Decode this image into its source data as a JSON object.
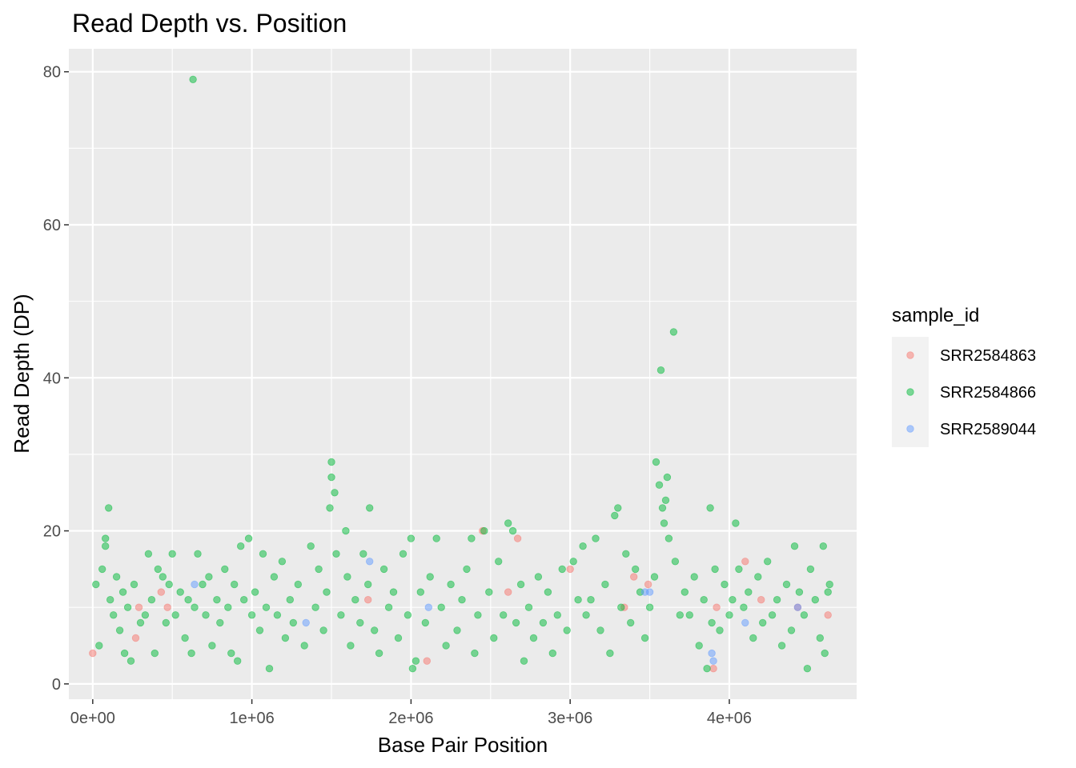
{
  "chart_data": {
    "type": "scatter",
    "title": "Read Depth vs. Position",
    "xlabel": "Base Pair Position",
    "ylabel": "Read Depth (DP)",
    "xlim": [
      -150000,
      4800000
    ],
    "ylim": [
      -2,
      83
    ],
    "x_ticks": [
      {
        "value": 0,
        "label": "0e+00"
      },
      {
        "value": 1000000,
        "label": "1e+06"
      },
      {
        "value": 2000000,
        "label": "2e+06"
      },
      {
        "value": 3000000,
        "label": "3e+06"
      },
      {
        "value": 4000000,
        "label": "4e+06"
      }
    ],
    "y_ticks": [
      {
        "value": 0,
        "label": "0"
      },
      {
        "value": 20,
        "label": "20"
      },
      {
        "value": 40,
        "label": "40"
      },
      {
        "value": 60,
        "label": "60"
      },
      {
        "value": 80,
        "label": "80"
      }
    ],
    "grid": true,
    "legend": {
      "title": "sample_id",
      "position": "right"
    },
    "series": [
      {
        "name": "SRR2584863",
        "color": "#F8766D",
        "points": [
          [
            0,
            4
          ],
          [
            270000,
            6
          ],
          [
            290000,
            10
          ],
          [
            430000,
            12
          ],
          [
            470000,
            10
          ],
          [
            1730000,
            11
          ],
          [
            2100000,
            3
          ],
          [
            2450000,
            20
          ],
          [
            2610000,
            12
          ],
          [
            2670000,
            19
          ],
          [
            3000000,
            15
          ],
          [
            3340000,
            10
          ],
          [
            3400000,
            14
          ],
          [
            3490000,
            13
          ],
          [
            3900000,
            2
          ],
          [
            3920000,
            10
          ],
          [
            4100000,
            16
          ],
          [
            4200000,
            11
          ],
          [
            4430000,
            10
          ],
          [
            4620000,
            9
          ]
        ]
      },
      {
        "name": "SRR2584866",
        "color": "#00BA38",
        "points": [
          [
            20000,
            13
          ],
          [
            40000,
            5
          ],
          [
            60000,
            15
          ],
          [
            80000,
            19
          ],
          [
            80000,
            18
          ],
          [
            100000,
            23
          ],
          [
            110000,
            11
          ],
          [
            130000,
            9
          ],
          [
            150000,
            14
          ],
          [
            170000,
            7
          ],
          [
            190000,
            12
          ],
          [
            200000,
            4
          ],
          [
            220000,
            10
          ],
          [
            240000,
            3
          ],
          [
            260000,
            13
          ],
          [
            300000,
            8
          ],
          [
            330000,
            9
          ],
          [
            350000,
            17
          ],
          [
            370000,
            11
          ],
          [
            390000,
            4
          ],
          [
            410000,
            15
          ],
          [
            440000,
            14
          ],
          [
            460000,
            8
          ],
          [
            480000,
            13
          ],
          [
            500000,
            17
          ],
          [
            520000,
            9
          ],
          [
            550000,
            12
          ],
          [
            580000,
            6
          ],
          [
            600000,
            11
          ],
          [
            620000,
            4
          ],
          [
            630000,
            79
          ],
          [
            640000,
            10
          ],
          [
            660000,
            17
          ],
          [
            690000,
            13
          ],
          [
            710000,
            9
          ],
          [
            730000,
            14
          ],
          [
            750000,
            5
          ],
          [
            780000,
            11
          ],
          [
            800000,
            8
          ],
          [
            830000,
            15
          ],
          [
            850000,
            10
          ],
          [
            870000,
            4
          ],
          [
            890000,
            13
          ],
          [
            910000,
            3
          ],
          [
            930000,
            18
          ],
          [
            950000,
            11
          ],
          [
            980000,
            19
          ],
          [
            1000000,
            9
          ],
          [
            1020000,
            12
          ],
          [
            1050000,
            7
          ],
          [
            1070000,
            17
          ],
          [
            1090000,
            10
          ],
          [
            1110000,
            2
          ],
          [
            1140000,
            14
          ],
          [
            1160000,
            9
          ],
          [
            1190000,
            16
          ],
          [
            1210000,
            6
          ],
          [
            1240000,
            11
          ],
          [
            1260000,
            8
          ],
          [
            1290000,
            13
          ],
          [
            1330000,
            5
          ],
          [
            1370000,
            18
          ],
          [
            1400000,
            10
          ],
          [
            1420000,
            15
          ],
          [
            1450000,
            7
          ],
          [
            1470000,
            12
          ],
          [
            1490000,
            23
          ],
          [
            1500000,
            29
          ],
          [
            1500000,
            27
          ],
          [
            1520000,
            25
          ],
          [
            1530000,
            17
          ],
          [
            1560000,
            9
          ],
          [
            1590000,
            20
          ],
          [
            1600000,
            14
          ],
          [
            1620000,
            5
          ],
          [
            1650000,
            11
          ],
          [
            1680000,
            8
          ],
          [
            1700000,
            17
          ],
          [
            1730000,
            13
          ],
          [
            1740000,
            23
          ],
          [
            1770000,
            7
          ],
          [
            1800000,
            4
          ],
          [
            1830000,
            15
          ],
          [
            1860000,
            10
          ],
          [
            1890000,
            12
          ],
          [
            1920000,
            6
          ],
          [
            1950000,
            17
          ],
          [
            1980000,
            9
          ],
          [
            2000000,
            19
          ],
          [
            2010000,
            2
          ],
          [
            2030000,
            3
          ],
          [
            2060000,
            12
          ],
          [
            2090000,
            8
          ],
          [
            2120000,
            14
          ],
          [
            2160000,
            19
          ],
          [
            2190000,
            10
          ],
          [
            2220000,
            5
          ],
          [
            2250000,
            13
          ],
          [
            2290000,
            7
          ],
          [
            2320000,
            11
          ],
          [
            2350000,
            15
          ],
          [
            2380000,
            19
          ],
          [
            2400000,
            4
          ],
          [
            2420000,
            9
          ],
          [
            2460000,
            20
          ],
          [
            2490000,
            12
          ],
          [
            2520000,
            6
          ],
          [
            2550000,
            16
          ],
          [
            2580000,
            9
          ],
          [
            2610000,
            21
          ],
          [
            2640000,
            20
          ],
          [
            2660000,
            8
          ],
          [
            2690000,
            13
          ],
          [
            2710000,
            3
          ],
          [
            2740000,
            10
          ],
          [
            2770000,
            6
          ],
          [
            2800000,
            14
          ],
          [
            2830000,
            8
          ],
          [
            2860000,
            12
          ],
          [
            2890000,
            4
          ],
          [
            2920000,
            9
          ],
          [
            2950000,
            15
          ],
          [
            2980000,
            7
          ],
          [
            3020000,
            16
          ],
          [
            3050000,
            11
          ],
          [
            3080000,
            18
          ],
          [
            3100000,
            9
          ],
          [
            3130000,
            11
          ],
          [
            3160000,
            19
          ],
          [
            3190000,
            7
          ],
          [
            3220000,
            13
          ],
          [
            3250000,
            4
          ],
          [
            3280000,
            22
          ],
          [
            3300000,
            23
          ],
          [
            3320000,
            10
          ],
          [
            3350000,
            17
          ],
          [
            3380000,
            8
          ],
          [
            3410000,
            15
          ],
          [
            3440000,
            12
          ],
          [
            3470000,
            6
          ],
          [
            3500000,
            10
          ],
          [
            3530000,
            14
          ],
          [
            3540000,
            29
          ],
          [
            3560000,
            26
          ],
          [
            3570000,
            41
          ],
          [
            3580000,
            23
          ],
          [
            3590000,
            21
          ],
          [
            3600000,
            24
          ],
          [
            3610000,
            27
          ],
          [
            3620000,
            19
          ],
          [
            3650000,
            46
          ],
          [
            3660000,
            16
          ],
          [
            3690000,
            9
          ],
          [
            3720000,
            12
          ],
          [
            3750000,
            9
          ],
          [
            3780000,
            14
          ],
          [
            3810000,
            5
          ],
          [
            3840000,
            11
          ],
          [
            3860000,
            2
          ],
          [
            3880000,
            23
          ],
          [
            3890000,
            8
          ],
          [
            3910000,
            15
          ],
          [
            3940000,
            7
          ],
          [
            3970000,
            13
          ],
          [
            4000000,
            9
          ],
          [
            4020000,
            11
          ],
          [
            4040000,
            21
          ],
          [
            4060000,
            15
          ],
          [
            4090000,
            10
          ],
          [
            4120000,
            12
          ],
          [
            4150000,
            6
          ],
          [
            4180000,
            14
          ],
          [
            4210000,
            8
          ],
          [
            4240000,
            16
          ],
          [
            4270000,
            9
          ],
          [
            4300000,
            11
          ],
          [
            4330000,
            5
          ],
          [
            4360000,
            13
          ],
          [
            4390000,
            7
          ],
          [
            4410000,
            18
          ],
          [
            4440000,
            12
          ],
          [
            4470000,
            9
          ],
          [
            4490000,
            2
          ],
          [
            4510000,
            15
          ],
          [
            4540000,
            11
          ],
          [
            4570000,
            6
          ],
          [
            4590000,
            18
          ],
          [
            4600000,
            4
          ],
          [
            4620000,
            12
          ],
          [
            4630000,
            13
          ]
        ]
      },
      {
        "name": "SRR2589044",
        "color": "#619CFF",
        "points": [
          [
            640000,
            13
          ],
          [
            1340000,
            8
          ],
          [
            1740000,
            16
          ],
          [
            2110000,
            10
          ],
          [
            3470000,
            12
          ],
          [
            3500000,
            12
          ],
          [
            3890000,
            4
          ],
          [
            3900000,
            3
          ],
          [
            4100000,
            8
          ],
          [
            4430000,
            10
          ]
        ]
      }
    ]
  }
}
